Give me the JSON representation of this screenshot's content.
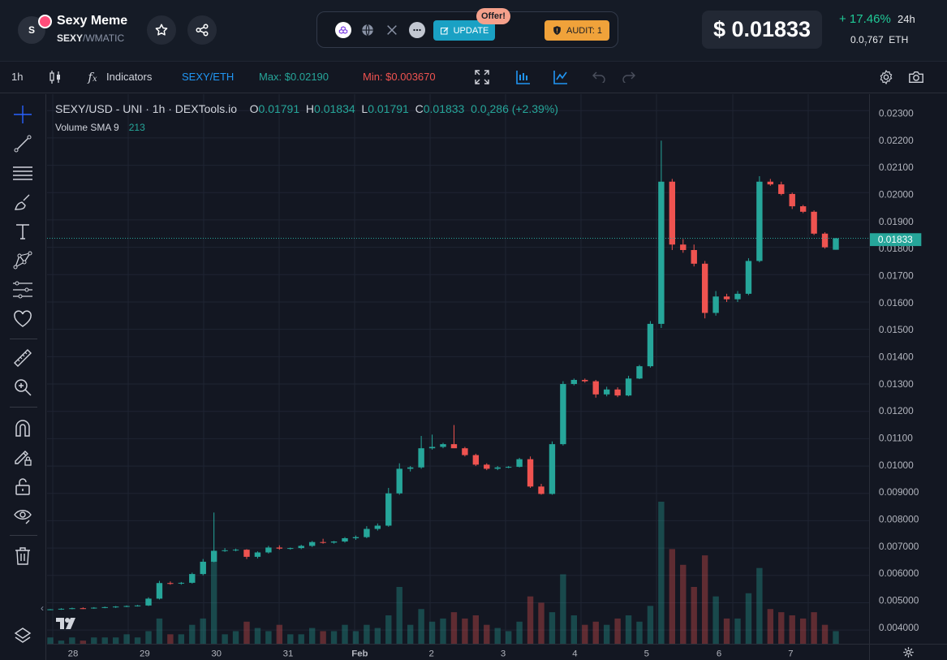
{
  "token": {
    "avatar_letter": "S",
    "name": "Sexy Meme",
    "symbol": "SEXY",
    "separator": "/",
    "base": "WMATIC"
  },
  "links": {
    "update_label": "UPDATE",
    "offer_label": "Offer!",
    "audit_label": "AUDIT: 1"
  },
  "price": {
    "usd": "$ 0.01833",
    "change": "+ 17.46%",
    "period": "24h",
    "eth_prefix": "0.0",
    "eth_sub": "7",
    "eth_rest": "767",
    "eth_unit": "ETH"
  },
  "toolbar": {
    "interval": "1h",
    "indicators": "Indicators",
    "pair": "SEXY/ETH",
    "max": "Max: $0.02190",
    "min": "Min: $0.003670"
  },
  "legend": {
    "title": "SEXY/USD - UNI · 1h · DEXTools.io",
    "o_label": "O",
    "o_value": "0.01791",
    "h_label": "H",
    "h_value": "0.01834",
    "l_label": "L",
    "l_value": "0.01791",
    "c_label": "C",
    "c_value": "0.01833",
    "change_prefix": "0.0",
    "change_sub": "4",
    "change_rest": "286 (+2.39%)",
    "volume_label": "Volume SMA 9",
    "volume_value": "213"
  },
  "colors": {
    "up": "#26a69a",
    "down": "#ef5350",
    "accent": "#2196f3",
    "positive": "#20c997",
    "update": "#1aa1c4",
    "audit": "#f0a23a"
  },
  "chart_data": {
    "type": "candlestick",
    "y_ticks": [
      "0.02300",
      "0.02200",
      "0.02100",
      "0.02000",
      "0.01900",
      "0.01800",
      "0.01700",
      "0.01600",
      "0.01500",
      "0.01400",
      "0.01300",
      "0.01200",
      "0.01100",
      "0.01000",
      "0.009000",
      "0.008000",
      "0.007000",
      "0.006000",
      "0.005000",
      "0.004000"
    ],
    "x_ticks": [
      "28",
      "29",
      "30",
      "31",
      "Feb",
      "2",
      "3",
      "4",
      "5",
      "6",
      "7"
    ],
    "ylim": [
      0.0035,
      0.0236
    ],
    "last_price_label": "0.01833",
    "last_price": 0.01833,
    "series": [
      {
        "name": "price",
        "values": [
          [
            0.00475,
            0.00477,
            0.00473,
            0.00476
          ],
          [
            0.00476,
            0.0048,
            0.00474,
            0.00478
          ],
          [
            0.00478,
            0.00482,
            0.00476,
            0.0048
          ],
          [
            0.0048,
            0.00483,
            0.00477,
            0.00479
          ],
          [
            0.00479,
            0.00484,
            0.00478,
            0.00482
          ],
          [
            0.00482,
            0.00486,
            0.0048,
            0.00484
          ],
          [
            0.00484,
            0.00488,
            0.00481,
            0.00486
          ],
          [
            0.00486,
            0.0049,
            0.00484,
            0.00488
          ],
          [
            0.00488,
            0.00492,
            0.00486,
            0.0049
          ],
          [
            0.0049,
            0.0052,
            0.00488,
            0.00515
          ],
          [
            0.00515,
            0.0058,
            0.00512,
            0.00572
          ],
          [
            0.00572,
            0.00578,
            0.00566,
            0.0057
          ],
          [
            0.0057,
            0.00576,
            0.00566,
            0.00573
          ],
          [
            0.00573,
            0.0061,
            0.0057,
            0.00605
          ],
          [
            0.00605,
            0.0066,
            0.006,
            0.0065
          ],
          [
            0.0065,
            0.0083,
            0.00648,
            0.0069
          ],
          [
            0.0069,
            0.007,
            0.00686,
            0.00692
          ],
          [
            0.00692,
            0.00698,
            0.00688,
            0.00694
          ],
          [
            0.00694,
            0.00696,
            0.0066,
            0.00668
          ],
          [
            0.00668,
            0.00688,
            0.00662,
            0.00684
          ],
          [
            0.00684,
            0.00708,
            0.0068,
            0.00702
          ],
          [
            0.00702,
            0.0071,
            0.00694,
            0.00698
          ],
          [
            0.00698,
            0.00702,
            0.00694,
            0.007
          ],
          [
            0.007,
            0.00712,
            0.00696,
            0.00708
          ],
          [
            0.00708,
            0.00726,
            0.00704,
            0.00722
          ],
          [
            0.00722,
            0.00734,
            0.00716,
            0.0072
          ],
          [
            0.0072,
            0.00726,
            0.00716,
            0.00724
          ],
          [
            0.00724,
            0.0074,
            0.0072,
            0.00736
          ],
          [
            0.00736,
            0.00746,
            0.0073,
            0.0074
          ],
          [
            0.0074,
            0.0078,
            0.00736,
            0.0077
          ],
          [
            0.0077,
            0.0079,
            0.00764,
            0.00782
          ],
          [
            0.00782,
            0.0092,
            0.00778,
            0.009
          ],
          [
            0.009,
            0.0101,
            0.00895,
            0.0099
          ],
          [
            0.0099,
            0.01,
            0.0098,
            0.00995
          ],
          [
            0.00995,
            0.0111,
            0.0099,
            0.01065
          ],
          [
            0.01065,
            0.01115,
            0.0106,
            0.0107
          ],
          [
            0.0107,
            0.01085,
            0.01065,
            0.0108
          ],
          [
            0.0108,
            0.0115,
            0.0107,
            0.01065
          ],
          [
            0.01065,
            0.0107,
            0.01035,
            0.0104
          ],
          [
            0.0104,
            0.01045,
            0.01,
            0.01005
          ],
          [
            0.01005,
            0.0101,
            0.00985,
            0.0099
          ],
          [
            0.0099,
            0.01,
            0.00985,
            0.00995
          ],
          [
            0.00995,
            0.01,
            0.00992,
            0.00997
          ],
          [
            0.00997,
            0.0103,
            0.00995,
            0.01025
          ],
          [
            0.01025,
            0.01035,
            0.0092,
            0.00925
          ],
          [
            0.00925,
            0.00935,
            0.00895,
            0.00898
          ],
          [
            0.00898,
            0.0109,
            0.00895,
            0.0108
          ],
          [
            0.0108,
            0.0131,
            0.01075,
            0.013
          ],
          [
            0.013,
            0.0132,
            0.01295,
            0.01315
          ],
          [
            0.01315,
            0.0132,
            0.01305,
            0.0131
          ],
          [
            0.0131,
            0.01315,
            0.0125,
            0.01262
          ],
          [
            0.01262,
            0.0129,
            0.01255,
            0.0128
          ],
          [
            0.0128,
            0.01288,
            0.01252,
            0.01258
          ],
          [
            0.01258,
            0.0133,
            0.01255,
            0.0132
          ],
          [
            0.0132,
            0.0137,
            0.01318,
            0.01365
          ],
          [
            0.01365,
            0.0153,
            0.0136,
            0.0152
          ],
          [
            0.0152,
            0.0219,
            0.01505,
            0.0204
          ],
          [
            0.0204,
            0.0205,
            0.0179,
            0.0181
          ],
          [
            0.0181,
            0.0183,
            0.0178,
            0.0179
          ],
          [
            0.0179,
            0.0181,
            0.0173,
            0.0174
          ],
          [
            0.0174,
            0.0175,
            0.0154,
            0.0156
          ],
          [
            0.0156,
            0.0164,
            0.0155,
            0.0162
          ],
          [
            0.0162,
            0.0163,
            0.016,
            0.0161
          ],
          [
            0.0161,
            0.0164,
            0.016,
            0.0163
          ],
          [
            0.0163,
            0.0176,
            0.01625,
            0.0175
          ],
          [
            0.0175,
            0.0206,
            0.01745,
            0.0204
          ],
          [
            0.0204,
            0.0205,
            0.02025,
            0.0203
          ],
          [
            0.0203,
            0.0204,
            0.0199,
            0.01995
          ],
          [
            0.01995,
            0.02,
            0.0194,
            0.0195
          ],
          [
            0.0195,
            0.01955,
            0.01925,
            0.0193
          ],
          [
            0.0193,
            0.01935,
            0.01845,
            0.0185
          ],
          [
            0.0185,
            0.01855,
            0.01795,
            0.018
          ],
          [
            0.01791,
            0.01834,
            0.01791,
            0.01833
          ]
        ]
      }
    ],
    "volume": [
      2,
      1,
      2,
      1,
      2,
      2,
      2,
      3,
      2,
      4,
      8,
      3,
      3,
      6,
      8,
      26,
      3,
      4,
      7,
      5,
      4,
      6,
      3,
      3,
      5,
      4,
      4,
      6,
      4,
      6,
      5,
      9,
      18,
      6,
      11,
      7,
      8,
      10,
      8,
      9,
      6,
      5,
      4,
      7,
      15,
      13,
      10,
      22,
      9,
      6,
      7,
      6,
      8,
      9,
      7,
      12,
      45,
      30,
      25,
      18,
      28,
      15,
      8,
      8,
      16,
      24,
      11,
      10,
      9,
      8,
      10,
      6,
      4
    ],
    "volume_up": [
      true,
      true,
      true,
      false,
      true,
      true,
      true,
      true,
      true,
      true,
      true,
      false,
      true,
      true,
      true,
      true,
      true,
      true,
      false,
      true,
      true,
      false,
      true,
      true,
      true,
      false,
      true,
      true,
      true,
      true,
      true,
      true,
      true,
      true,
      true,
      true,
      true,
      false,
      false,
      false,
      false,
      true,
      true,
      true,
      false,
      false,
      true,
      true,
      true,
      false,
      false,
      true,
      false,
      true,
      true,
      true,
      true,
      false,
      false,
      false,
      false,
      true,
      false,
      true,
      true,
      true,
      false,
      false,
      false,
      false,
      false,
      false,
      true
    ]
  }
}
